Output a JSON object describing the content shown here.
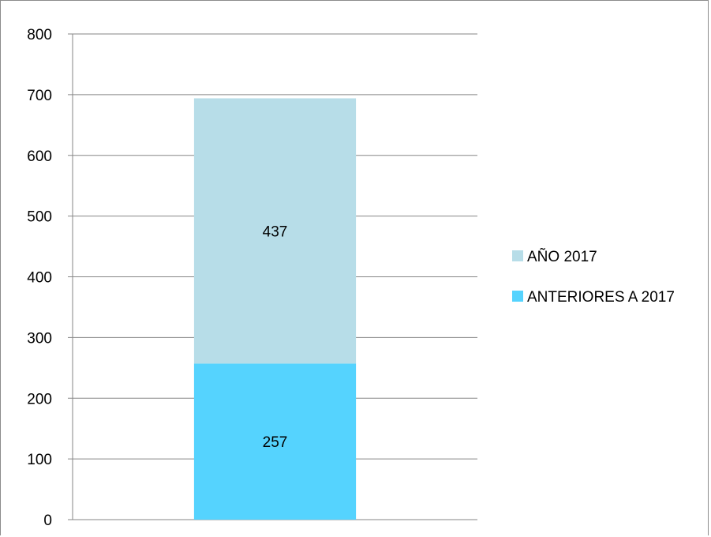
{
  "chart_data": {
    "type": "bar",
    "stacked": true,
    "categories": [
      ""
    ],
    "series": [
      {
        "name": "ANTERIORES A 2017",
        "values": [
          257
        ],
        "color": "#55d3fe"
      },
      {
        "name": "AÑO 2017",
        "values": [
          437
        ],
        "color": "#b7dde8"
      }
    ],
    "title": "",
    "xlabel": "",
    "ylabel": "",
    "ylim": [
      0,
      800
    ],
    "yticks": [
      0,
      100,
      200,
      300,
      400,
      500,
      600,
      700,
      800
    ],
    "grid": true,
    "legend_position": "right"
  }
}
